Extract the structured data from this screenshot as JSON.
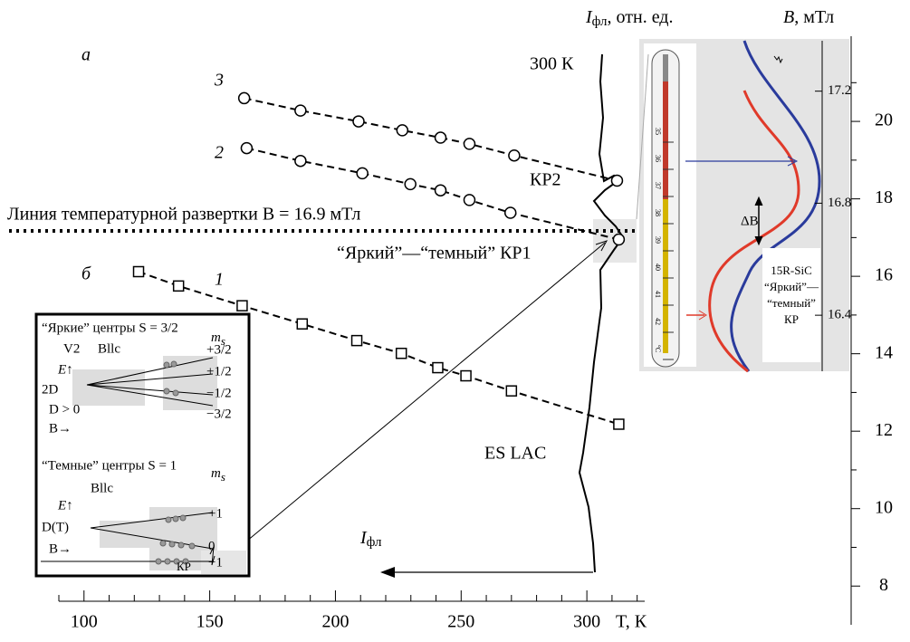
{
  "chart_data": {
    "type": "scatter",
    "panel_labels": [
      "а",
      "б"
    ],
    "x_label": "T, К",
    "xlim": [
      90,
      323
    ],
    "xticks": [
      100,
      150,
      200,
      250,
      300
    ],
    "xminorticks": [
      90,
      110,
      120,
      130,
      140,
      160,
      170,
      180,
      190,
      210,
      220,
      230,
      240,
      260,
      270,
      280,
      290,
      310,
      320
    ],
    "ylim": [
      7,
      22.2
    ],
    "yticks": [
      8,
      10,
      12,
      14,
      16,
      18,
      20
    ],
    "yminorticks": [
      9,
      11,
      13,
      15,
      17,
      19,
      21
    ],
    "y2lim": [
      16.2,
      17.38
    ],
    "y2ticks": [
      16.4,
      16.8,
      17.2
    ],
    "series": [
      {
        "name": "1",
        "marker": "square",
        "x": [
          121.7,
          137.6,
          162.9,
          186.8,
          208.5,
          226.2,
          240.7,
          251.9,
          270,
          312.7
        ],
        "values": [
          16.12,
          15.75,
          15.24,
          14.77,
          14.34,
          14.01,
          13.64,
          13.43,
          13.04,
          12.18
        ]
      },
      {
        "name": "2",
        "marker": "circle",
        "x": [
          164.7,
          186.1,
          210.7,
          229.8,
          241.8,
          253.3,
          269.6,
          312.7
        ],
        "values": [
          19.31,
          18.98,
          18.66,
          18.38,
          18.22,
          17.97,
          17.64,
          16.95
        ]
      },
      {
        "name": "3",
        "marker": "circle",
        "x": [
          163.7,
          186.1,
          209.2,
          226.6,
          241.8,
          253.3,
          271.1,
          312
        ],
        "values": [
          20.6,
          20.28,
          20.0,
          19.77,
          19.58,
          19.42,
          19.12,
          18.47
        ]
      }
    ],
    "annotations": {
      "temp": "300 К",
      "intensity_axis": {
        "symbol": "I",
        "sub": "фл",
        "rest": ", отн. ед."
      },
      "b_axis": {
        "symbol": "B",
        "rest": ", мТл"
      },
      "kr2": "КР2",
      "scan_line": "Линия температурной развертки B = 16.9 мТл",
      "kr1": "“Яркий”—“темный” КР1",
      "es_lac": "ES LAC",
      "intensity_arrow": {
        "symbol": "I",
        "sub": "фл"
      },
      "delta_b": "ΔB",
      "sample": [
        "15R-SiC",
        "“Яркий”—",
        "“темный”",
        "КР"
      ],
      "thermometer": [
        "35",
        "36",
        "37",
        "38",
        "39",
        "40",
        "41",
        "42",
        "°C"
      ]
    },
    "inset": {
      "bright_title": "“Яркие” центры S = 3/2",
      "v2": "V2",
      "bllc": "Bllc",
      "ms": "m",
      "ms_sub": "s",
      "e_axis": "E↑",
      "two_d": "2D",
      "d_pos": "D > 0",
      "b_axis": "B→",
      "bright_levels": [
        "+3/2",
        "+1/2",
        "−1/2",
        "−3/2"
      ],
      "dark_title": "“Темные” центры S = 1",
      "dark_bllc": "Bllc",
      "dark_e": "E↑",
      "dt": "D(T)",
      "dark_b": "B→",
      "dark_levels": [
        "+1",
        "0",
        "−1"
      ],
      "kr": "КР"
    }
  }
}
